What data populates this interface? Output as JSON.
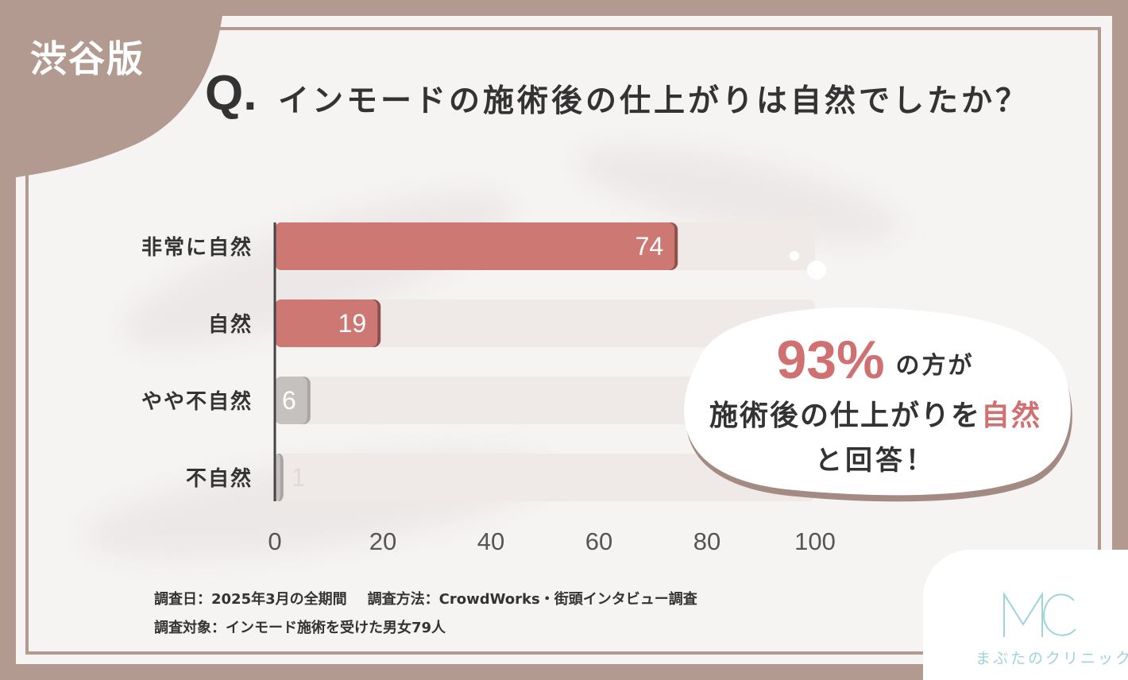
{
  "area_tag": "渋谷版",
  "question_mark": "Q.",
  "question": "インモードの施術後の仕上がりは自然でしたか？",
  "chart_data": {
    "type": "bar",
    "orientation": "horizontal",
    "categories": [
      "非常に自然",
      "自然",
      "やや不自然",
      "不自然"
    ],
    "values": [
      74,
      19,
      6,
      1
    ],
    "xlim": [
      0,
      100
    ],
    "xticks": [
      0,
      20,
      40,
      60,
      80,
      100
    ],
    "title": "",
    "xlabel": "",
    "ylabel": "",
    "grid": false,
    "colors": {
      "positive": "#cd7872",
      "negative": "#c4c1bf",
      "track": "#efe9e7"
    }
  },
  "callout": {
    "percent": "93%",
    "line1_rest": "の方が",
    "line2_prefix": "施術後の仕上がりを",
    "line2_highlight": "自然",
    "line3": "と回答！"
  },
  "notes": {
    "survey_date": "調査日：2025年3月の全期間",
    "survey_method": "調査方法：CrowdWorks・街頭インタビュー調査",
    "survey_target": "調査対象：インモード施術を受けた男女79人"
  },
  "logo": {
    "mark": "MC",
    "name": "まぶたのクリニック",
    "color": "#9fd3da"
  },
  "colors": {
    "frame": "#b39a91",
    "accent": "#d07070"
  }
}
